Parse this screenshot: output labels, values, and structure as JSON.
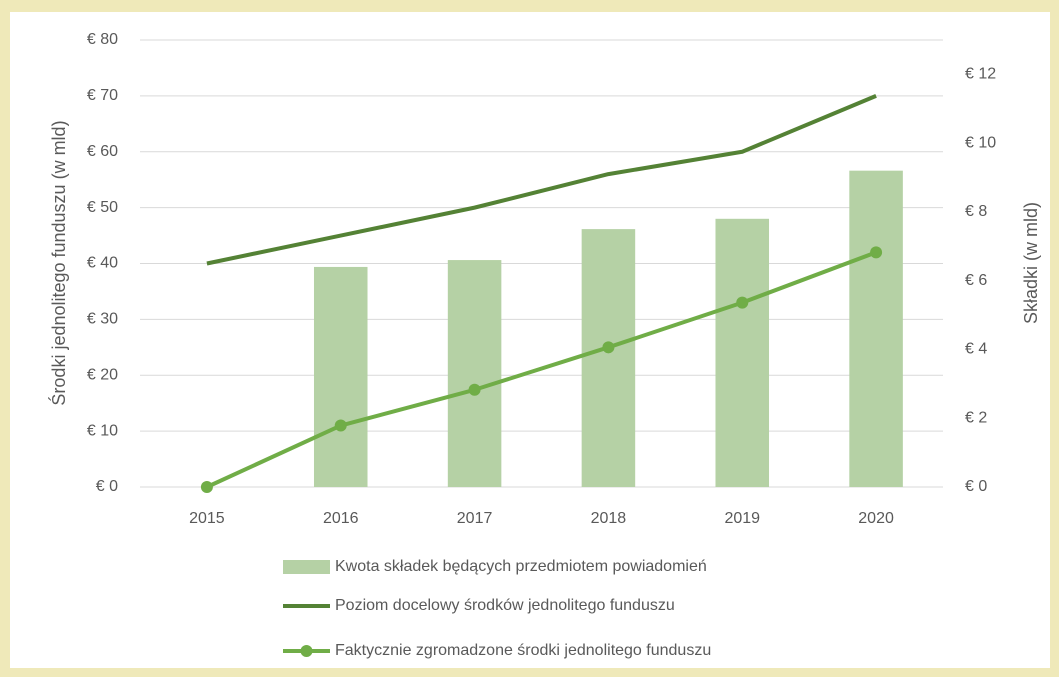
{
  "chart_data": {
    "type": "bar",
    "categories": [
      "2015",
      "2016",
      "2017",
      "2018",
      "2019",
      "2020"
    ],
    "series": [
      {
        "name": "Kwota składek będących przedmiotem powiadomień",
        "type": "bar",
        "axis": "y2",
        "color": "#b5d1a5",
        "values": [
          null,
          6.4,
          6.6,
          7.5,
          7.8,
          9.2
        ]
      },
      {
        "name": "Poziom docelowy środków jednolitego funduszu",
        "type": "line",
        "color": "#548235",
        "values": [
          40,
          45,
          50,
          56,
          60,
          70
        ]
      },
      {
        "name": "Faktycznie zgromadzone środki jednolitego funduszu",
        "type": "line",
        "markers": true,
        "color": "#70ad47",
        "values": [
          0,
          11,
          17.4,
          25,
          33,
          42
        ]
      }
    ],
    "y_label": "Środki jednolitego funduszu (w mld)",
    "y2_label": "Składki (w mld)",
    "ylim": [
      0,
      80
    ],
    "yticks": [
      {
        "value": 0,
        "label": "€ 0"
      },
      {
        "value": 10,
        "label": "€ 10"
      },
      {
        "value": 20,
        "label": "€ 20"
      },
      {
        "value": 30,
        "label": "€ 30"
      },
      {
        "value": 40,
        "label": "€ 40"
      },
      {
        "value": 50,
        "label": "€ 50"
      },
      {
        "value": 60,
        "label": "€ 60"
      },
      {
        "value": 70,
        "label": "€ 70"
      },
      {
        "value": 80,
        "label": "€ 80"
      }
    ],
    "y2lim": [
      0,
      13
    ],
    "y2ticks": [
      {
        "value": 0,
        "label": "€ 0"
      },
      {
        "value": 2,
        "label": "€ 2"
      },
      {
        "value": 4,
        "label": "€ 4"
      },
      {
        "value": 6,
        "label": "€ 6"
      },
      {
        "value": 8,
        "label": "€ 8"
      },
      {
        "value": 10,
        "label": "€ 10"
      },
      {
        "value": 12,
        "label": "€ 12"
      }
    ],
    "grid": true,
    "legend": "bottom"
  }
}
